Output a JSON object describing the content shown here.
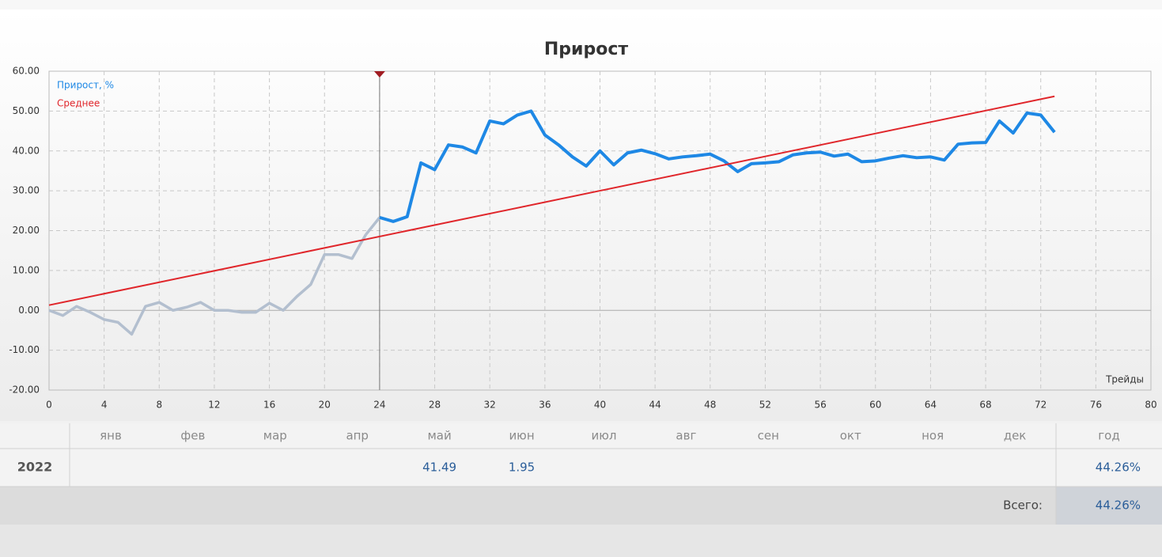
{
  "chart_data": {
    "type": "line",
    "title": "Прирост",
    "xlabel": "Трейды",
    "x": [
      0,
      1,
      2,
      3,
      4,
      5,
      6,
      7,
      8,
      9,
      10,
      11,
      12,
      13,
      14,
      15,
      16,
      17,
      18,
      19,
      20,
      21,
      22,
      23,
      24,
      25,
      26,
      27,
      28,
      29,
      30,
      31,
      32,
      33,
      34,
      35,
      36,
      37,
      38,
      39,
      40,
      41,
      42,
      43,
      44,
      45,
      46,
      47,
      48,
      49,
      50,
      51,
      52,
      53,
      54,
      55,
      56,
      57,
      58,
      59,
      60,
      61,
      62,
      63,
      64,
      65,
      66,
      67,
      68,
      69,
      70,
      71,
      72,
      73
    ],
    "series": [
      {
        "name": "Прирост, %",
        "color": "#1e88e5",
        "past_color": "#b3bfcf",
        "values": [
          0,
          -1.3,
          1,
          -0.5,
          -2.3,
          -3,
          -6,
          1,
          2,
          0,
          0.8,
          2,
          0,
          0,
          -0.5,
          -0.5,
          1.8,
          0,
          3.5,
          6.5,
          14,
          14,
          13,
          19,
          23.3,
          22.3,
          23.5,
          37,
          35.3,
          41.5,
          41,
          39.5,
          47.5,
          46.8,
          49,
          50,
          44,
          41.5,
          38.5,
          36.2,
          40,
          36.5,
          39.5,
          40.2,
          39.3,
          38,
          38.5,
          38.8,
          39.2,
          37.5,
          34.8,
          36.8,
          37,
          37.3,
          39,
          39.5,
          39.7,
          38.7,
          39.2,
          37.3,
          37.5,
          38.2,
          38.8,
          38.3,
          38.5,
          37.7,
          41.7,
          42,
          42.1,
          47.5,
          44.5,
          49.5,
          49,
          44.7
        ]
      },
      {
        "name": "Среднее",
        "color": "#e0262b",
        "x": [
          0,
          73
        ],
        "values": [
          1.3,
          53.7
        ]
      }
    ],
    "cursor_x": 24,
    "xlim": [
      0,
      80
    ],
    "xticks": [
      0,
      4,
      8,
      12,
      16,
      20,
      24,
      28,
      32,
      36,
      40,
      44,
      48,
      52,
      56,
      60,
      64,
      68,
      72,
      76,
      80
    ],
    "ylim": [
      -20,
      60
    ],
    "yticks": [
      {
        "value": -20,
        "label": "-20.00"
      },
      {
        "value": -10,
        "label": "-10.00"
      },
      {
        "value": 0,
        "label": "0.00"
      },
      {
        "value": 10,
        "label": "10.00"
      },
      {
        "value": 20,
        "label": "20.00"
      },
      {
        "value": 30,
        "label": "30.00"
      },
      {
        "value": 40,
        "label": "40.00"
      },
      {
        "value": 50,
        "label": "50.00"
      },
      {
        "value": 60,
        "label": "60.00"
      }
    ],
    "grid": true
  },
  "table": {
    "header": [
      "янв",
      "фев",
      "мар",
      "апр",
      "май",
      "июн",
      "июл",
      "авг",
      "сен",
      "окт",
      "ноя",
      "дек",
      "год"
    ],
    "rows": [
      {
        "label": "2022",
        "cells": [
          null,
          null,
          null,
          null,
          41.49,
          1.95,
          null,
          null,
          null,
          null,
          null,
          null,
          "44.26%"
        ]
      }
    ],
    "total": {
      "label": "Всего:",
      "value": "44.26%"
    }
  }
}
